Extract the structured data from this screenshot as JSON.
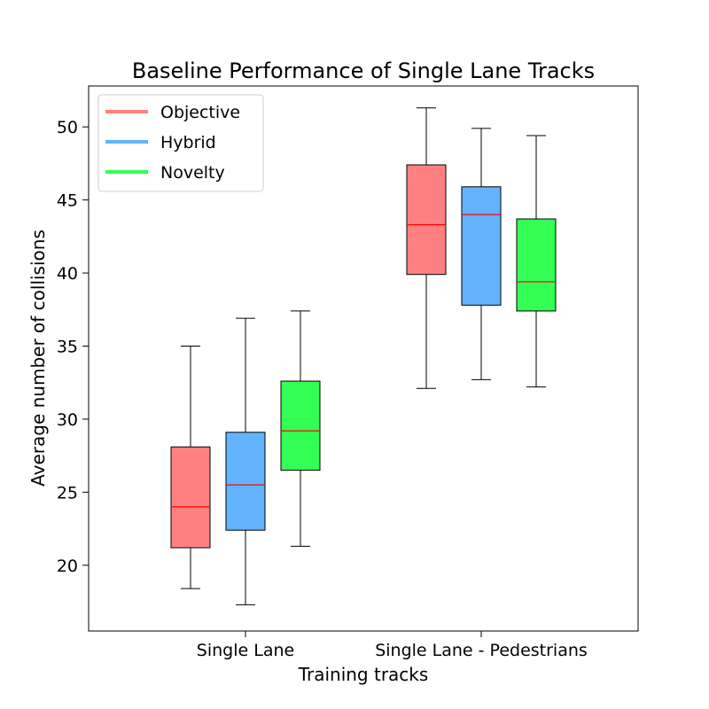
{
  "chart_data": {
    "type": "box",
    "title": "Baseline Performance of Single Lane Tracks",
    "xlabel": "Training tracks",
    "ylabel": "Average number of collisions",
    "categories": [
      "Single Lane",
      "Single Lane - Pedestrians"
    ],
    "ylim": [
      15.5,
      52.8
    ],
    "yticks": [
      20,
      25,
      30,
      35,
      40,
      45,
      50
    ],
    "grid": false,
    "legend": {
      "placement": "upper-left"
    },
    "median_color": "#ff0000",
    "series": [
      {
        "name": "Objective",
        "color": "#ff8080",
        "boxes": [
          {
            "whisker_low": 18.4,
            "q1": 21.2,
            "median": 24.0,
            "q3": 28.1,
            "whisker_high": 35.0
          },
          {
            "whisker_low": 32.1,
            "q1": 39.9,
            "median": 43.3,
            "q3": 47.4,
            "whisker_high": 51.3
          }
        ]
      },
      {
        "name": "Hybrid",
        "color": "#63b3ff",
        "boxes": [
          {
            "whisker_low": 17.3,
            "q1": 22.4,
            "median": 25.5,
            "q3": 29.1,
            "whisker_high": 36.9
          },
          {
            "whisker_low": 32.7,
            "q1": 37.8,
            "median": 44.0,
            "q3": 45.9,
            "whisker_high": 49.9
          }
        ]
      },
      {
        "name": "Novelty",
        "color": "#33ff55",
        "boxes": [
          {
            "whisker_low": 21.3,
            "q1": 26.5,
            "median": 29.2,
            "q3": 32.6,
            "whisker_high": 37.4
          },
          {
            "whisker_low": 32.2,
            "q1": 37.4,
            "median": 39.4,
            "q3": 43.7,
            "whisker_high": 49.4
          }
        ]
      }
    ]
  }
}
